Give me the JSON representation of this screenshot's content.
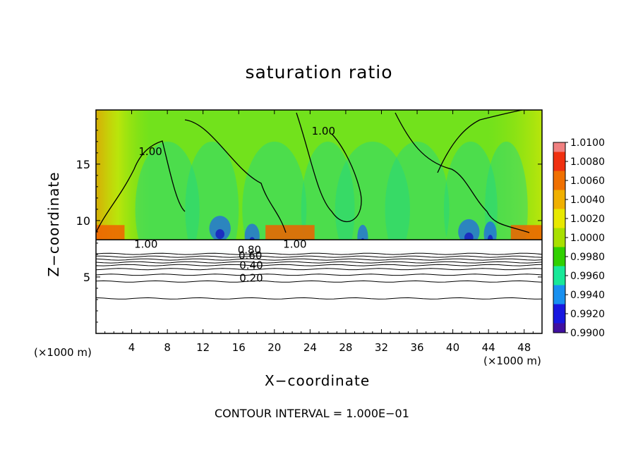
{
  "chart_data": {
    "type": "heatmap",
    "title": "saturation ratio",
    "xlabel": "X−coordinate",
    "ylabel": "Z−coordinate",
    "x_unit_left": "(×1000 m)",
    "x_unit_right": "(×1000 m)",
    "x_ticks": [
      4,
      8,
      12,
      16,
      20,
      24,
      28,
      32,
      36,
      40,
      44,
      48
    ],
    "y_ticks": [
      5,
      10,
      15
    ],
    "xlim": [
      0,
      50
    ],
    "ylim": [
      0,
      19.8
    ],
    "footer": "CONTOUR INTERVAL = 1.000E−01",
    "colorbar": {
      "labels": [
        "1.0100",
        "1.0080",
        "1.0060",
        "1.0040",
        "1.0020",
        "1.0000",
        "0.9980",
        "0.9960",
        "0.9940",
        "0.9920",
        "0.9900"
      ],
      "colors": [
        "#f08080",
        "#f03010",
        "#f07000",
        "#f0b000",
        "#e8e800",
        "#a8e000",
        "#30d000",
        "#18e898",
        "#1890f0",
        "#1818e0",
        "#4010a0"
      ],
      "min": 0.99,
      "max": 1.01
    },
    "contour_labels": [
      {
        "text": "1.00",
        "x": 25.5,
        "y": 17.6
      },
      {
        "text": "1.00",
        "x": 6.1,
        "y": 15.8
      },
      {
        "text": "1.00",
        "x": 5.6,
        "y": 7.6
      },
      {
        "text": "1.00",
        "x": 22.3,
        "y": 7.6
      },
      {
        "text": "0.80",
        "x": 17.2,
        "y": 7.1
      },
      {
        "text": "0.60",
        "x": 17.3,
        "y": 6.6
      },
      {
        "text": "0.40",
        "x": 17.4,
        "y": 5.7
      },
      {
        "text": "0.20",
        "x": 17.4,
        "y": 4.6
      }
    ],
    "contour_levels": [
      0.2,
      0.4,
      0.6,
      0.8,
      1.0
    ]
  }
}
